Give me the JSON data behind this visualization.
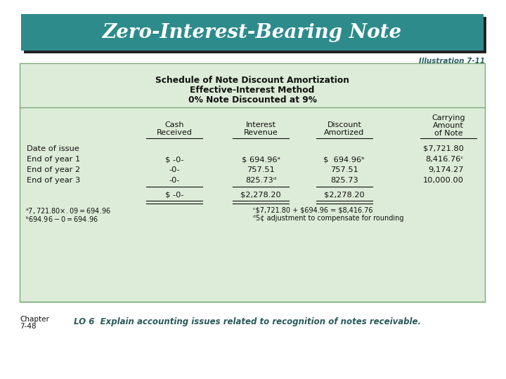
{
  "title": "Zero-Interest-Bearing Note",
  "title_bg_color": "#2e8b8b",
  "title_shadow_color": "#222222",
  "title_text_color": "#ffffff",
  "illustration": "Illustration 7-11",
  "illustration_color": "#2a6060",
  "table_bg_color": "#ddecd8",
  "table_border_color": "#7aaa7a",
  "header_line1": "Schedule of Note Discount Amortization",
  "header_line2": "Effective-Interest Method",
  "header_line3": "0% Note Discounted at 9%",
  "col_header_cash": "Cash\nReceived",
  "col_header_interest": "Interest\nRevenue",
  "col_header_discount": "Discount\nAmortized",
  "col_header_carrying": "Carrying\nAmount\nof Note",
  "row_labels": [
    "Date of issue",
    "End of year 1",
    "End of year 2",
    "End of year 3",
    ""
  ],
  "col1": [
    "",
    "$ -0-",
    "-0-",
    "-0-",
    "$ -0-"
  ],
  "col2": [
    "",
    "$ 694.96ᵃ",
    "757.51",
    "825.73ᵈ",
    "$2,278.20"
  ],
  "col3": [
    "",
    "$  694.96ᵇ",
    "757.51",
    "825.73",
    "$2,278.20"
  ],
  "col4": [
    "$7,721.80",
    "8,416.76ᶜ",
    "9,174.27",
    "10,000.00",
    ""
  ],
  "fn1": "ᵃ$7,721.80 × .09 = $694.96",
  "fn2": "ᵇ$694.96 − 0 = $694.96",
  "fn3": "ᶜ$7,721.80 + $694.96 = $8,416.76",
  "fn4": "ᵈ5¢ adjustment to compensate for rounding",
  "footer_chapter": "Chapter",
  "footer_num": "7-48",
  "footer_lo": "LO 6  Explain accounting issues related to recognition of notes receivable.",
  "footer_color": "#2a5a5a",
  "bg_color": "#ffffff",
  "dark_text": "#111111"
}
